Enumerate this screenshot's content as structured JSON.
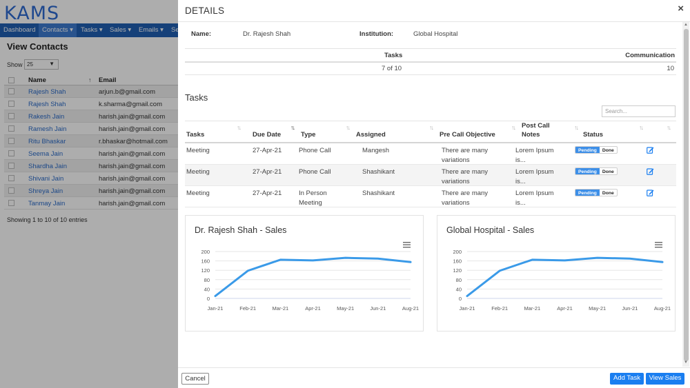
{
  "app": {
    "logo": "KAMS",
    "nav": [
      "Dashboard",
      "Contacts ▾",
      "Tasks ▾",
      "Sales ▾",
      "Emails ▾",
      "Se"
    ],
    "page_title": "View Contacts",
    "show_label": "Show",
    "show_value": "25",
    "table_headers": [
      "Name",
      "Email"
    ],
    "contacts": [
      {
        "name": "Rajesh Shah",
        "email": "arjun.b@gmail.com"
      },
      {
        "name": "Rajesh Shah",
        "email": "k.sharma@gmail.com"
      },
      {
        "name": "Rakesh Jain",
        "email": "harish.jain@gmail.com"
      },
      {
        "name": "Ramesh Jain",
        "email": "harish.jain@gmail.com"
      },
      {
        "name": "Ritu Bhaskar",
        "email": "r.bhaskar@hotmail.com"
      },
      {
        "name": "Seema Jain",
        "email": "harish.jain@gmail.com"
      },
      {
        "name": "Shardha Jain",
        "email": "harish.jain@gmail.com"
      },
      {
        "name": "Shivani Jain",
        "email": "harish.jain@gmail.com"
      },
      {
        "name": "Shreya Jain",
        "email": "harish.jain@gmail.com"
      },
      {
        "name": "Tanmay Jain",
        "email": "harish.jain@gmail.com"
      }
    ],
    "entries_info": "Showing 1 to 10 of 10 entries"
  },
  "modal": {
    "title": "DETAILS",
    "close": "×",
    "name_label": "Name:",
    "name_value": "Dr. Rajesh Shah",
    "institution_label": "Institution:",
    "institution_value": "Global Hospital",
    "summary": {
      "tasks_label": "Tasks",
      "tasks_value": "7 of 10",
      "communication_label": "Communication",
      "communication_value": "10"
    },
    "tasks_heading": "Tasks",
    "search_placeholder": "Search...",
    "task_headers": {
      "tasks": "Tasks",
      "due_date": "Due Date",
      "type": "Type",
      "assigned": "Assigned",
      "objective": "Pre Call Objective",
      "notes": "Post Call Notes",
      "status": "Status"
    },
    "tasks": [
      {
        "task": "Meeting",
        "due": "27-Apr-21",
        "type": "Phone Call",
        "assigned": "Mangesh",
        "objective": "There are many variations",
        "notes": "Lorem Ipsum is..."
      },
      {
        "task": "Meeting",
        "due": "27-Apr-21",
        "type": "Phone Call",
        "assigned": "Shashikant",
        "objective": "There are many variations",
        "notes": "Lorem Ipsum is..."
      },
      {
        "task": "Meeting",
        "due": "27-Apr-21",
        "type": "In Person Meeting",
        "assigned": "Shashikant",
        "objective": "There are many variations",
        "notes": "Lorem Ipsum is..."
      }
    ],
    "status_pending": "Pending",
    "status_done": "Done",
    "cancel_label": "Cancel",
    "add_task_label": "Add Task",
    "view_sales_label": "View Sales"
  },
  "colors": {
    "accent": "#1a7ef0",
    "line": "#3a9ae8",
    "nav": "#1f5fb3"
  },
  "chart_data": [
    {
      "type": "line",
      "title": "Dr. Rajesh Shah - Sales",
      "x": [
        "Jan-21",
        "Feb-21",
        "Mar-21",
        "Apr-21",
        "May-21",
        "Jun-21",
        "Aug-21"
      ],
      "values": [
        10,
        118,
        165,
        162,
        173,
        170,
        155
      ],
      "yticks": [
        0,
        40,
        80,
        120,
        160,
        200
      ],
      "ylim": [
        0,
        200
      ],
      "grid": true
    },
    {
      "type": "line",
      "title": "Global Hospital - Sales",
      "x": [
        "Jan-21",
        "Feb-21",
        "Mar-21",
        "Apr-21",
        "May-21",
        "Jun-21",
        "Aug-21"
      ],
      "values": [
        10,
        118,
        165,
        162,
        173,
        170,
        155
      ],
      "yticks": [
        0,
        40,
        80,
        120,
        160,
        200
      ],
      "ylim": [
        0,
        200
      ],
      "grid": true
    }
  ]
}
